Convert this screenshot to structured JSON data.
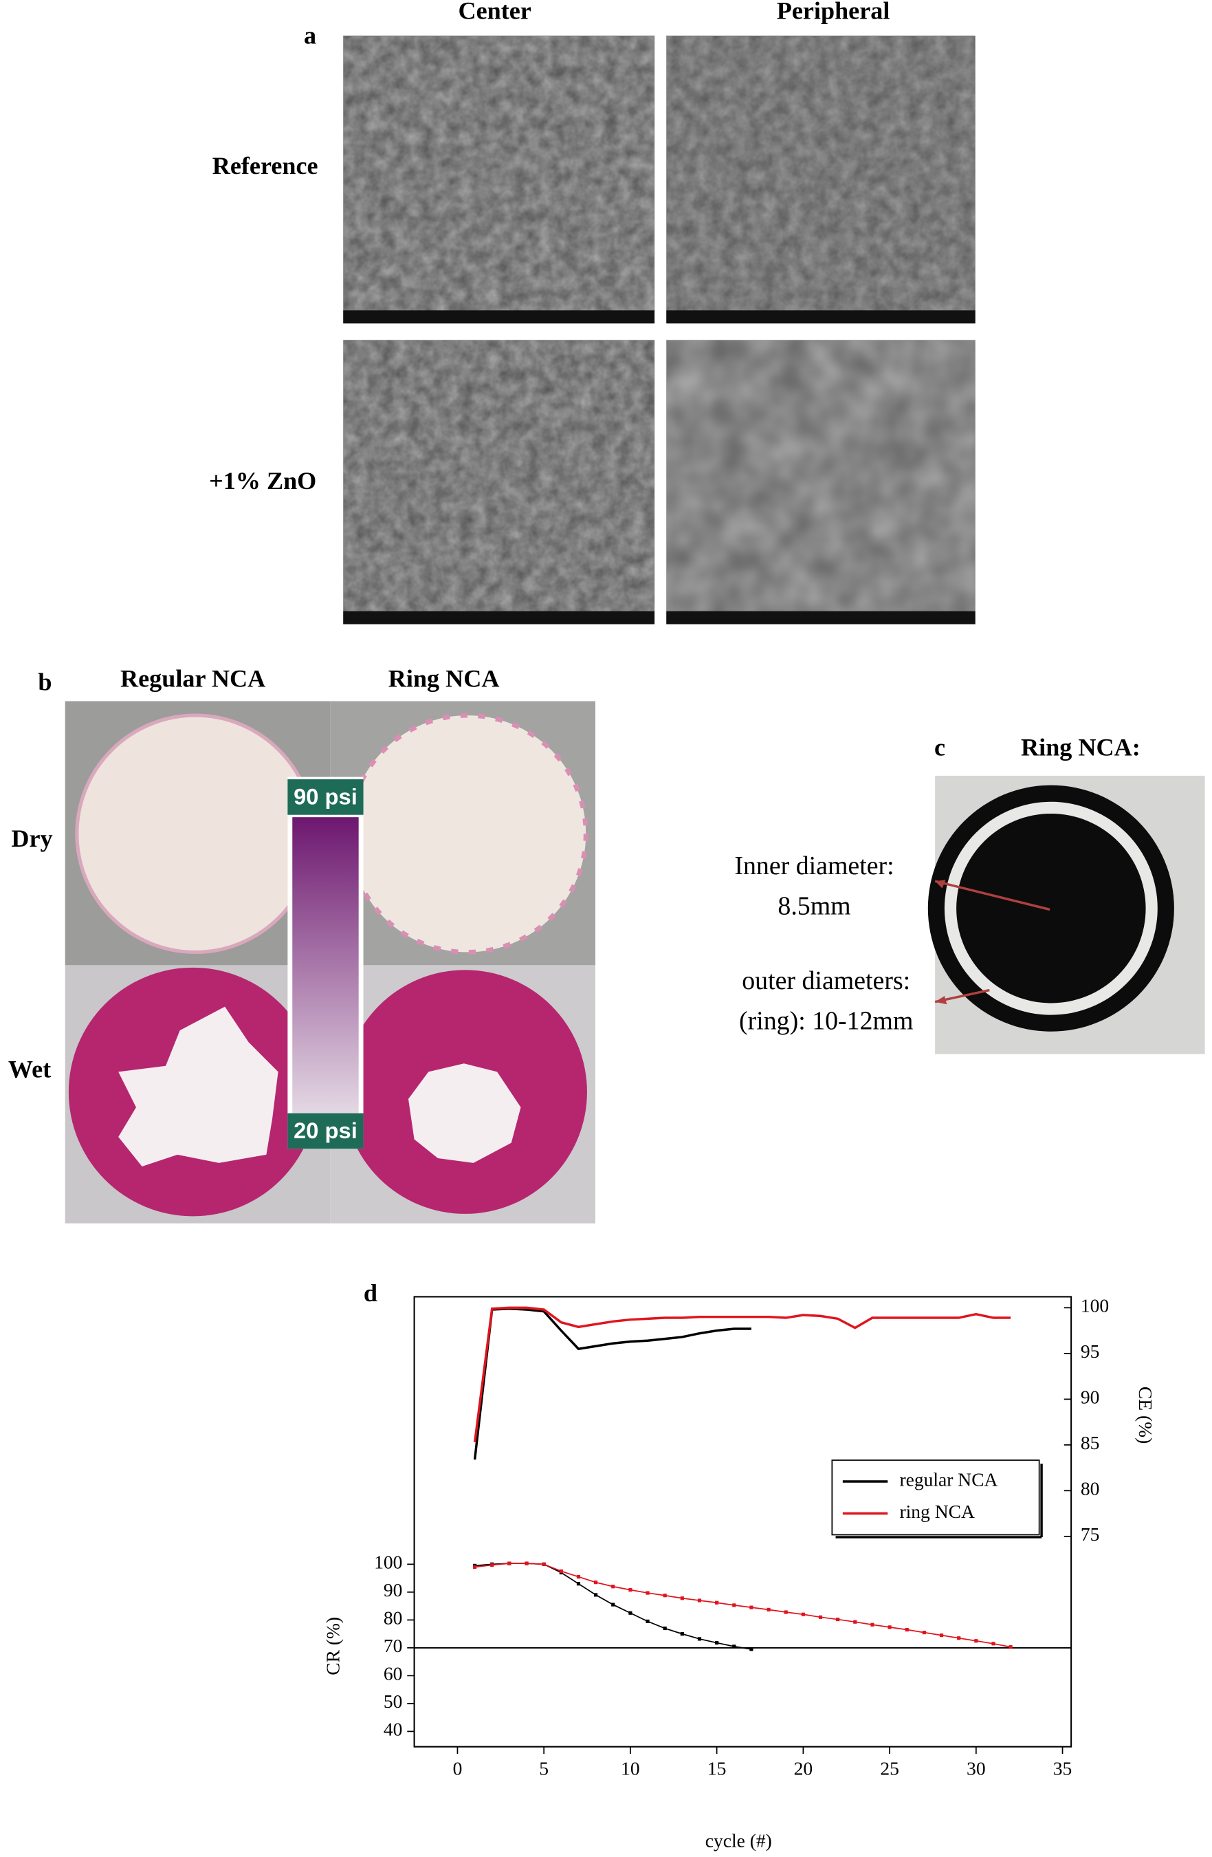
{
  "panel_a": {
    "label": "a",
    "columns": [
      "Center",
      "Peripheral"
    ],
    "rows": [
      "Reference",
      "+1% ZnO"
    ]
  },
  "panel_b": {
    "label": "b",
    "columns": [
      "Regular NCA",
      "Ring NCA"
    ],
    "rows": [
      "Dry",
      "Wet"
    ],
    "scale_top": "90 psi",
    "scale_bottom": "20 psi"
  },
  "panel_c": {
    "label": "c",
    "title": "Ring NCA:",
    "annotations": [
      "Inner diameter:",
      "8.5mm",
      "outer diameters:",
      "(ring): 10-12mm"
    ]
  },
  "chart_data": {
    "type": "line",
    "panel_label": "d",
    "xlabel": "cycle (#)",
    "ylabel": "CR (%)",
    "y2label": "CE (%)",
    "xlim": [
      -2.5,
      35.5
    ],
    "xticks": [
      0,
      5,
      10,
      15,
      20,
      25,
      30,
      35
    ],
    "ylim": [
      34.5,
      196
    ],
    "yticks": [
      40,
      50,
      60,
      70,
      80,
      90,
      100
    ],
    "y2lim": [
      52,
      101.2
    ],
    "y2ticks": [
      75,
      80,
      85,
      90,
      95,
      100
    ],
    "hline": 70,
    "legend": "center-right",
    "series": [
      {
        "name": "regular NCA",
        "color": "#000000",
        "axis": "y2",
        "markers": false,
        "x": [
          1,
          2,
          3,
          4,
          5,
          6,
          7,
          8,
          9,
          10,
          11,
          12,
          13,
          14,
          15,
          16,
          17
        ],
        "values": [
          83.4,
          99.8,
          99.9,
          99.8,
          99.6,
          97.5,
          95.5,
          95.8,
          96.1,
          96.3,
          96.4,
          96.6,
          96.8,
          97.2,
          97.5,
          97.7,
          97.7
        ]
      },
      {
        "name": "ring NCA",
        "color": "#e0141e",
        "axis": "y2",
        "markers": false,
        "x": [
          1,
          2,
          3,
          4,
          5,
          6,
          7,
          8,
          9,
          10,
          11,
          12,
          13,
          14,
          15,
          16,
          17,
          18,
          19,
          20,
          21,
          22,
          23,
          24,
          25,
          26,
          27,
          28,
          29,
          30,
          31,
          32
        ],
        "values": [
          85.3,
          99.9,
          100,
          100,
          99.8,
          98.4,
          97.9,
          98.2,
          98.5,
          98.7,
          98.8,
          98.9,
          98.9,
          99,
          99,
          99,
          99,
          99,
          98.9,
          99.2,
          99.1,
          98.8,
          97.8,
          98.9,
          98.9,
          98.9,
          98.9,
          98.9,
          98.9,
          99.3,
          98.9,
          98.9
        ]
      },
      {
        "color": "#000000",
        "axis": "y",
        "markers": true,
        "x": [
          1,
          2,
          3,
          4,
          5,
          6,
          7,
          8,
          9,
          10,
          11,
          12,
          13,
          14,
          15,
          16,
          17
        ],
        "values": [
          99.5,
          100,
          100.3,
          100.3,
          100,
          97,
          93,
          89,
          85.5,
          82.5,
          79.5,
          77,
          75,
          73.2,
          71.8,
          70.5,
          69.5
        ]
      },
      {
        "color": "#e0141e",
        "axis": "y",
        "markers": true,
        "x": [
          1,
          2,
          3,
          4,
          5,
          6,
          7,
          8,
          9,
          10,
          11,
          12,
          13,
          14,
          15,
          16,
          17,
          18,
          19,
          20,
          21,
          22,
          23,
          24,
          25,
          26,
          27,
          28,
          29,
          30,
          31,
          32
        ],
        "values": [
          99,
          99.7,
          100.3,
          100.3,
          100,
          97.5,
          95.5,
          93.5,
          92,
          90.8,
          89.7,
          88.8,
          87.8,
          87,
          86.2,
          85.3,
          84.5,
          83.7,
          82.8,
          82,
          81,
          80.2,
          79.3,
          78.3,
          77.4,
          76.5,
          75.5,
          74.5,
          73.5,
          72.5,
          71.5,
          70.3
        ]
      }
    ]
  }
}
